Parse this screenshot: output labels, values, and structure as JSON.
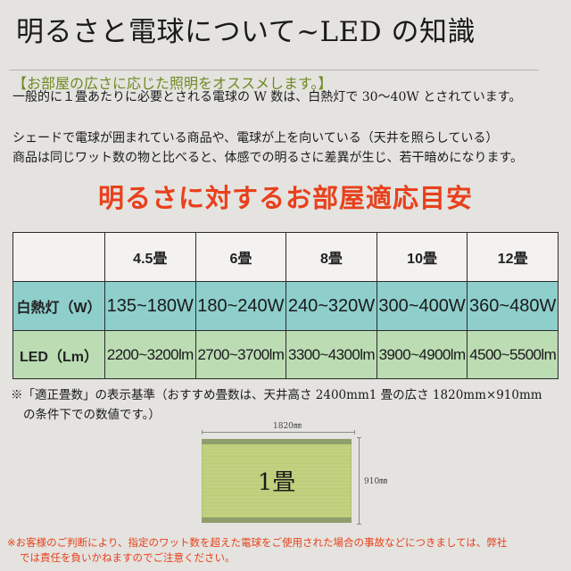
{
  "header": {
    "title": "明るさと電球について~LED の知識"
  },
  "intro": {
    "subheading": "【お部屋の広さに応じた照明をオススメします。】",
    "paragraph1": "一般的に１畳あたりに必要とされる電球の W 数は、白熱灯で 30～40W とされています。",
    "paragraph2_line1": "シェードで電球が囲まれている商品や、電球が上を向いている（天井を照らしている）",
    "paragraph2_line2": "商品は同じワット数の物と比べると、体感での明るさに差異が生じ、若干暗めになります。"
  },
  "section": {
    "title": "明るさに対するお部屋適応目安"
  },
  "table": {
    "columns": [
      "4.5畳",
      "6畳",
      "8畳",
      "10畳",
      "12畳"
    ],
    "rows": [
      {
        "label": "白熱灯（W）",
        "values": [
          "135~180W",
          "180~240W",
          "240~320W",
          "300~400W",
          "360~480W"
        ]
      },
      {
        "label": "LED（Lm）",
        "values": [
          "2200~3200lm",
          "2700~3700lm",
          "3300~4300lm",
          "3900~4900lm",
          "4500~5500lm"
        ]
      }
    ]
  },
  "note": {
    "line1": "※「適正畳数」の表示基準（おすすめ畳数は、天井高さ 2400mm1 畳の広さ 1820mm×910mm",
    "line2": "の条件下での数値です。）"
  },
  "diagram": {
    "width_label": "1820㎜",
    "height_label": "910㎜",
    "center_label": "1畳"
  },
  "disclaimer": {
    "line1": "※お客様のご判断により、指定のワット数を超えた電球をご使用された場合の事故などにつきましては、弊社",
    "line2": "では責任を負いかねますのでご注意ください。"
  },
  "colors": {
    "accent_red": "#e8401c",
    "accent_green": "#6e8a22",
    "incandescent_row": "#8ecfcc",
    "led_row": "#bcdcb4",
    "background": "#e4e3df"
  }
}
